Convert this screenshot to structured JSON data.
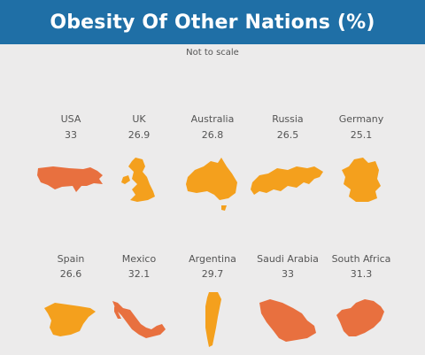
{
  "header": {
    "title": "Obesity Of Other Nations (%)"
  },
  "note": "Not to scale",
  "colors": {
    "header_bg": "#1f6fa6",
    "orange": "#f4a01d",
    "red_orange": "#e8703f",
    "text": "#555555"
  },
  "chart_data": {
    "type": "table",
    "title": "Obesity Of Other Nations (%)",
    "subtitle": "Not to scale",
    "items": [
      {
        "country": "USA",
        "value": 33,
        "label": "33",
        "shape": "usa-map-icon",
        "color": "#e8703f"
      },
      {
        "country": "UK",
        "value": 26.9,
        "label": "26.9",
        "shape": "uk-map-icon",
        "color": "#f4a01d"
      },
      {
        "country": "Australia",
        "value": 26.8,
        "label": "26.8",
        "shape": "australia-map-icon",
        "color": "#f4a01d"
      },
      {
        "country": "Russia",
        "value": 26.5,
        "label": "26.5",
        "shape": "russia-map-icon",
        "color": "#f4a01d"
      },
      {
        "country": "Germany",
        "value": 25.1,
        "label": "25.1",
        "shape": "germany-map-icon",
        "color": "#f4a01d"
      },
      {
        "country": "Spain",
        "value": 26.6,
        "label": "26.6",
        "shape": "spain-map-icon",
        "color": "#f4a01d"
      },
      {
        "country": "Mexico",
        "value": 32.1,
        "label": "32.1",
        "shape": "mexico-map-icon",
        "color": "#e8703f"
      },
      {
        "country": "Argentina",
        "value": 29.7,
        "label": "29.7",
        "shape": "argentina-map-icon",
        "color": "#f4a01d"
      },
      {
        "country": "Saudi Arabia",
        "value": 33,
        "label": "33",
        "shape": "saudi-arabia-map-icon",
        "color": "#e8703f"
      },
      {
        "country": "South Africa",
        "value": 31.3,
        "label": "31.3",
        "shape": "south-africa-map-icon",
        "color": "#e8703f"
      }
    ]
  }
}
